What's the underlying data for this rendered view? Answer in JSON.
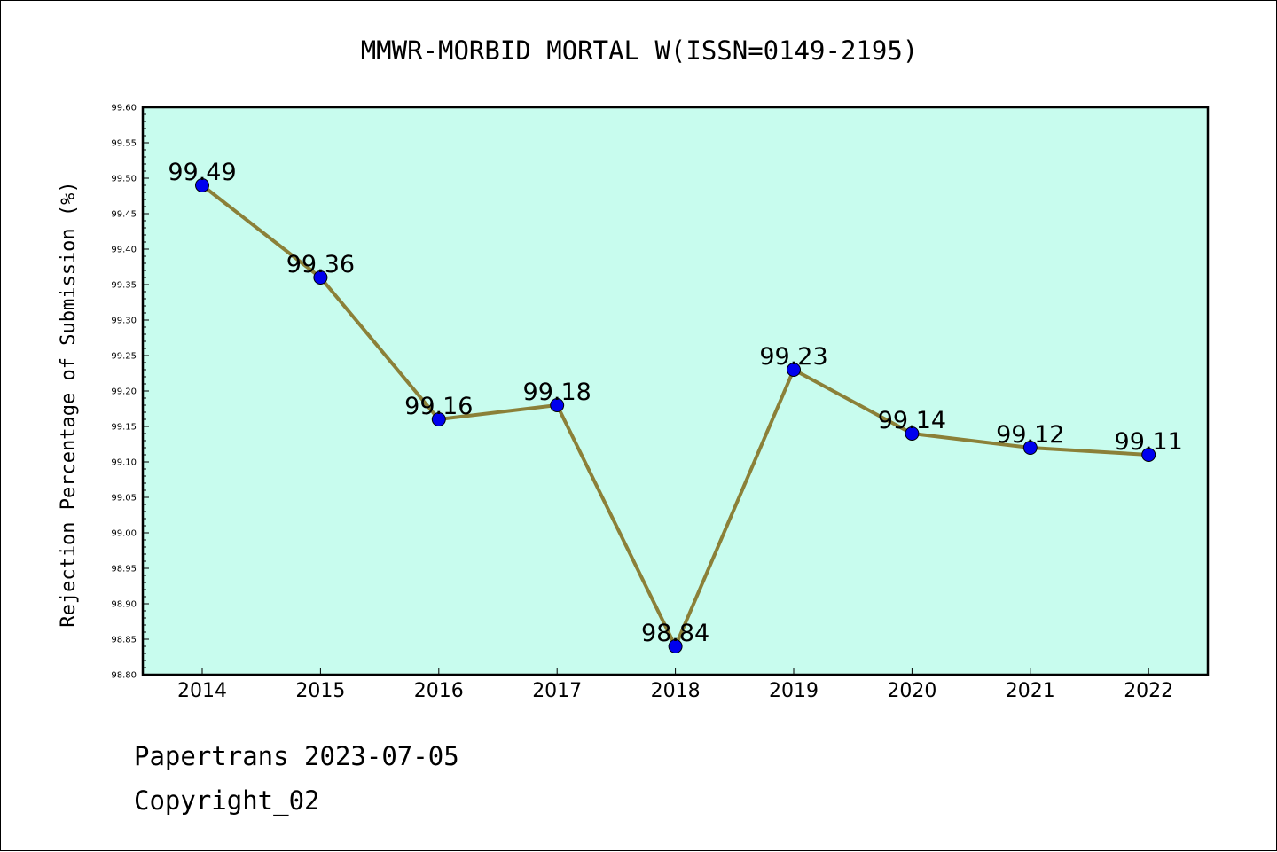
{
  "chart_data": {
    "type": "line",
    "title": "MMWR-MORBID MORTAL W(ISSN=0149-2195)",
    "xlabel": "",
    "ylabel": "Rejection Percentage of Submission (%)",
    "categories": [
      "2014",
      "2015",
      "2016",
      "2017",
      "2018",
      "2019",
      "2020",
      "2021",
      "2022"
    ],
    "series": [
      {
        "values": [
          99.49,
          99.36,
          99.16,
          99.18,
          98.84,
          99.23,
          99.14,
          99.12,
          99.11
        ]
      }
    ],
    "data_labels": [
      "99.49",
      "99.36",
      "99.16",
      "99.18",
      "98.84",
      "99.23",
      "99.14",
      "99.12",
      "99.11"
    ],
    "ylim": [
      98.8,
      99.6
    ],
    "yticks": [
      "98.80",
      "98.85",
      "98.90",
      "98.95",
      "99.00",
      "99.05",
      "99.10",
      "99.15",
      "99.20",
      "99.25",
      "99.30",
      "99.35",
      "99.40",
      "99.45",
      "99.50",
      "99.55",
      "99.60"
    ],
    "grid": false,
    "colors": {
      "plot_background": "#c8fcee",
      "line": "#8b8038",
      "marker": "#0000ee"
    }
  },
  "footer": {
    "line1": "Papertrans 2023-07-05",
    "line2": "Copyright_02"
  }
}
